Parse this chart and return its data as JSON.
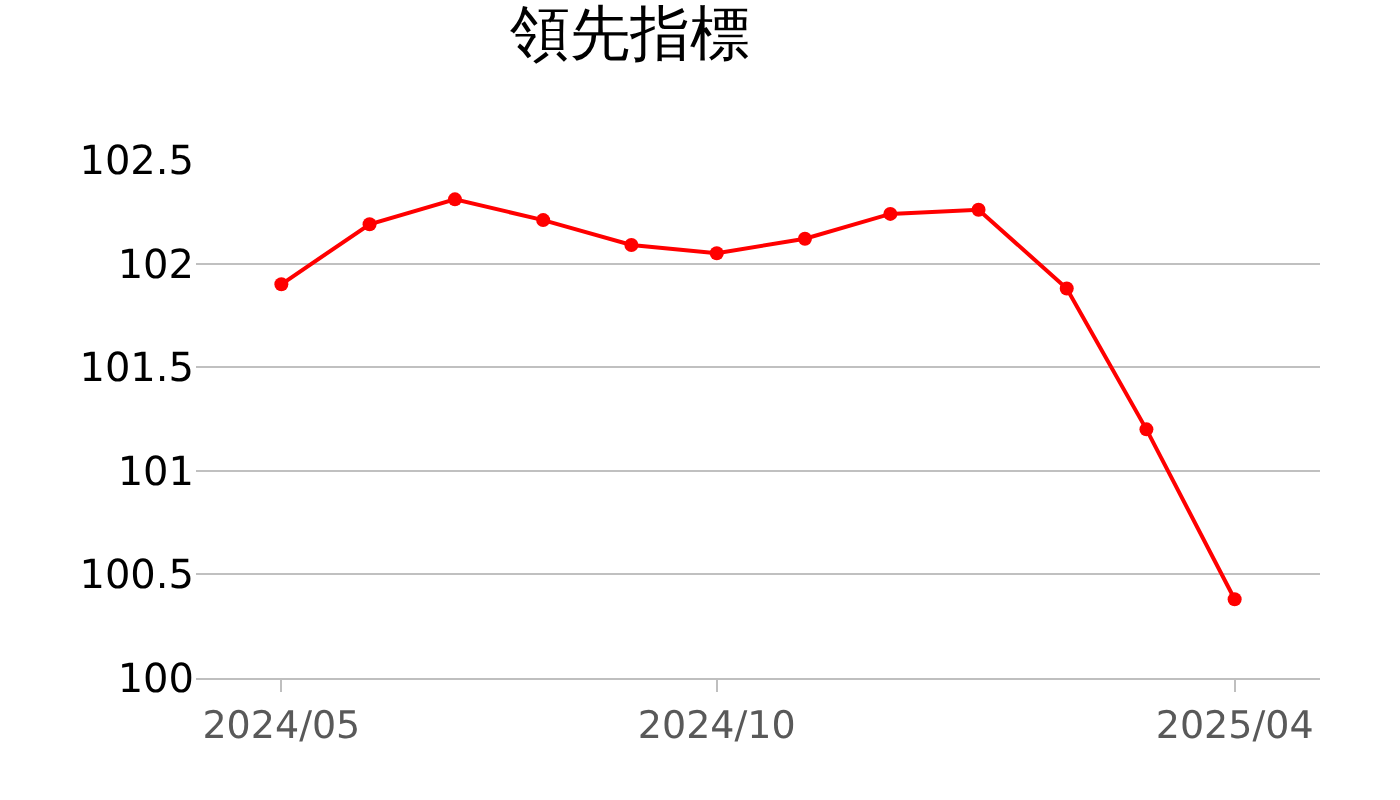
{
  "chart_data": {
    "type": "line",
    "title": "領先指標",
    "x": [
      "2024-05",
      "2024-06",
      "2024-07",
      "2024-08",
      "2024-09",
      "2024-10",
      "2024-11",
      "2024-12",
      "2025-01",
      "2025-02",
      "2025-03",
      "2025-04"
    ],
    "series": [
      {
        "color": "#ff0000",
        "values": [
          101.9,
          102.19,
          102.31,
          102.21,
          102.09,
          102.05,
          102.12,
          102.24,
          102.26,
          101.88,
          101.2,
          100.38
        ]
      }
    ],
    "xlim": [
      "2024-04-01",
      "2025-05-01"
    ],
    "xticks": [
      {
        "value": "2024-05",
        "label": "2024/05"
      },
      {
        "value": "2024-10",
        "label": "2024/10"
      },
      {
        "value": "2025-04",
        "label": "2025/04"
      }
    ],
    "ylim": [
      100,
      102.5
    ],
    "yticks": [
      100,
      100.5,
      101,
      101.5,
      102,
      102.5
    ],
    "grid": "y",
    "marker": "circle",
    "line_style": "solid"
  }
}
